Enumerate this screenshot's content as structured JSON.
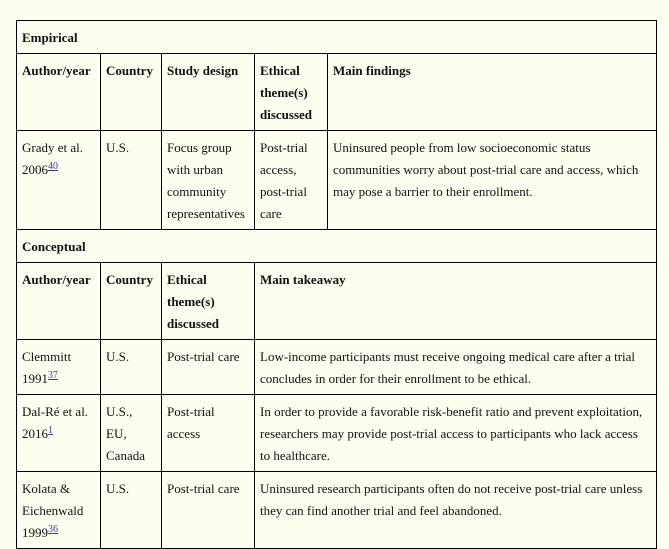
{
  "empirical": {
    "title": "Empirical",
    "headers": [
      "Author/year",
      "Country",
      "Study design",
      "Ethical theme(s) discussed",
      "Main findings"
    ],
    "rows": [
      {
        "author": "Grady et al. 2006",
        "ref": "40",
        "country": "U.S.",
        "design": "Focus group with urban community representatives",
        "theme": "Post-trial access, post-trial care",
        "finding": "Uninsured people from low socioeconomic status communities worry about post-trial care and access, which may pose a barrier to their enrollment."
      }
    ]
  },
  "conceptual": {
    "title": "Conceptual",
    "headers": [
      "Author/year",
      "Country",
      "Ethical theme(s) discussed",
      "Main takeaway"
    ],
    "rows": [
      {
        "author": "Clemmitt 1991",
        "ref": "37",
        "country": "U.S.",
        "theme": "Post-trial care",
        "takeaway": "Low-income participants must receive ongoing medical care after a trial concludes in order for their enrollment to be ethical."
      },
      {
        "author": "Dal-Ré et al. 2016",
        "ref": "1",
        "country": "U.S., EU, Canada",
        "theme": "Post-trial access",
        "takeaway": "In order to provide a favorable risk-benefit ratio and prevent exploitation, researchers may provide post-trial access to participants who lack access to healthcare."
      },
      {
        "author": "Kolata & Eichenwald 1999",
        "ref": "36",
        "country": "U.S.",
        "theme": "Post-trial care",
        "takeaway": "Uninsured research participants often do not receive post-trial care unless they can find another trial and feel abandoned."
      }
    ]
  }
}
